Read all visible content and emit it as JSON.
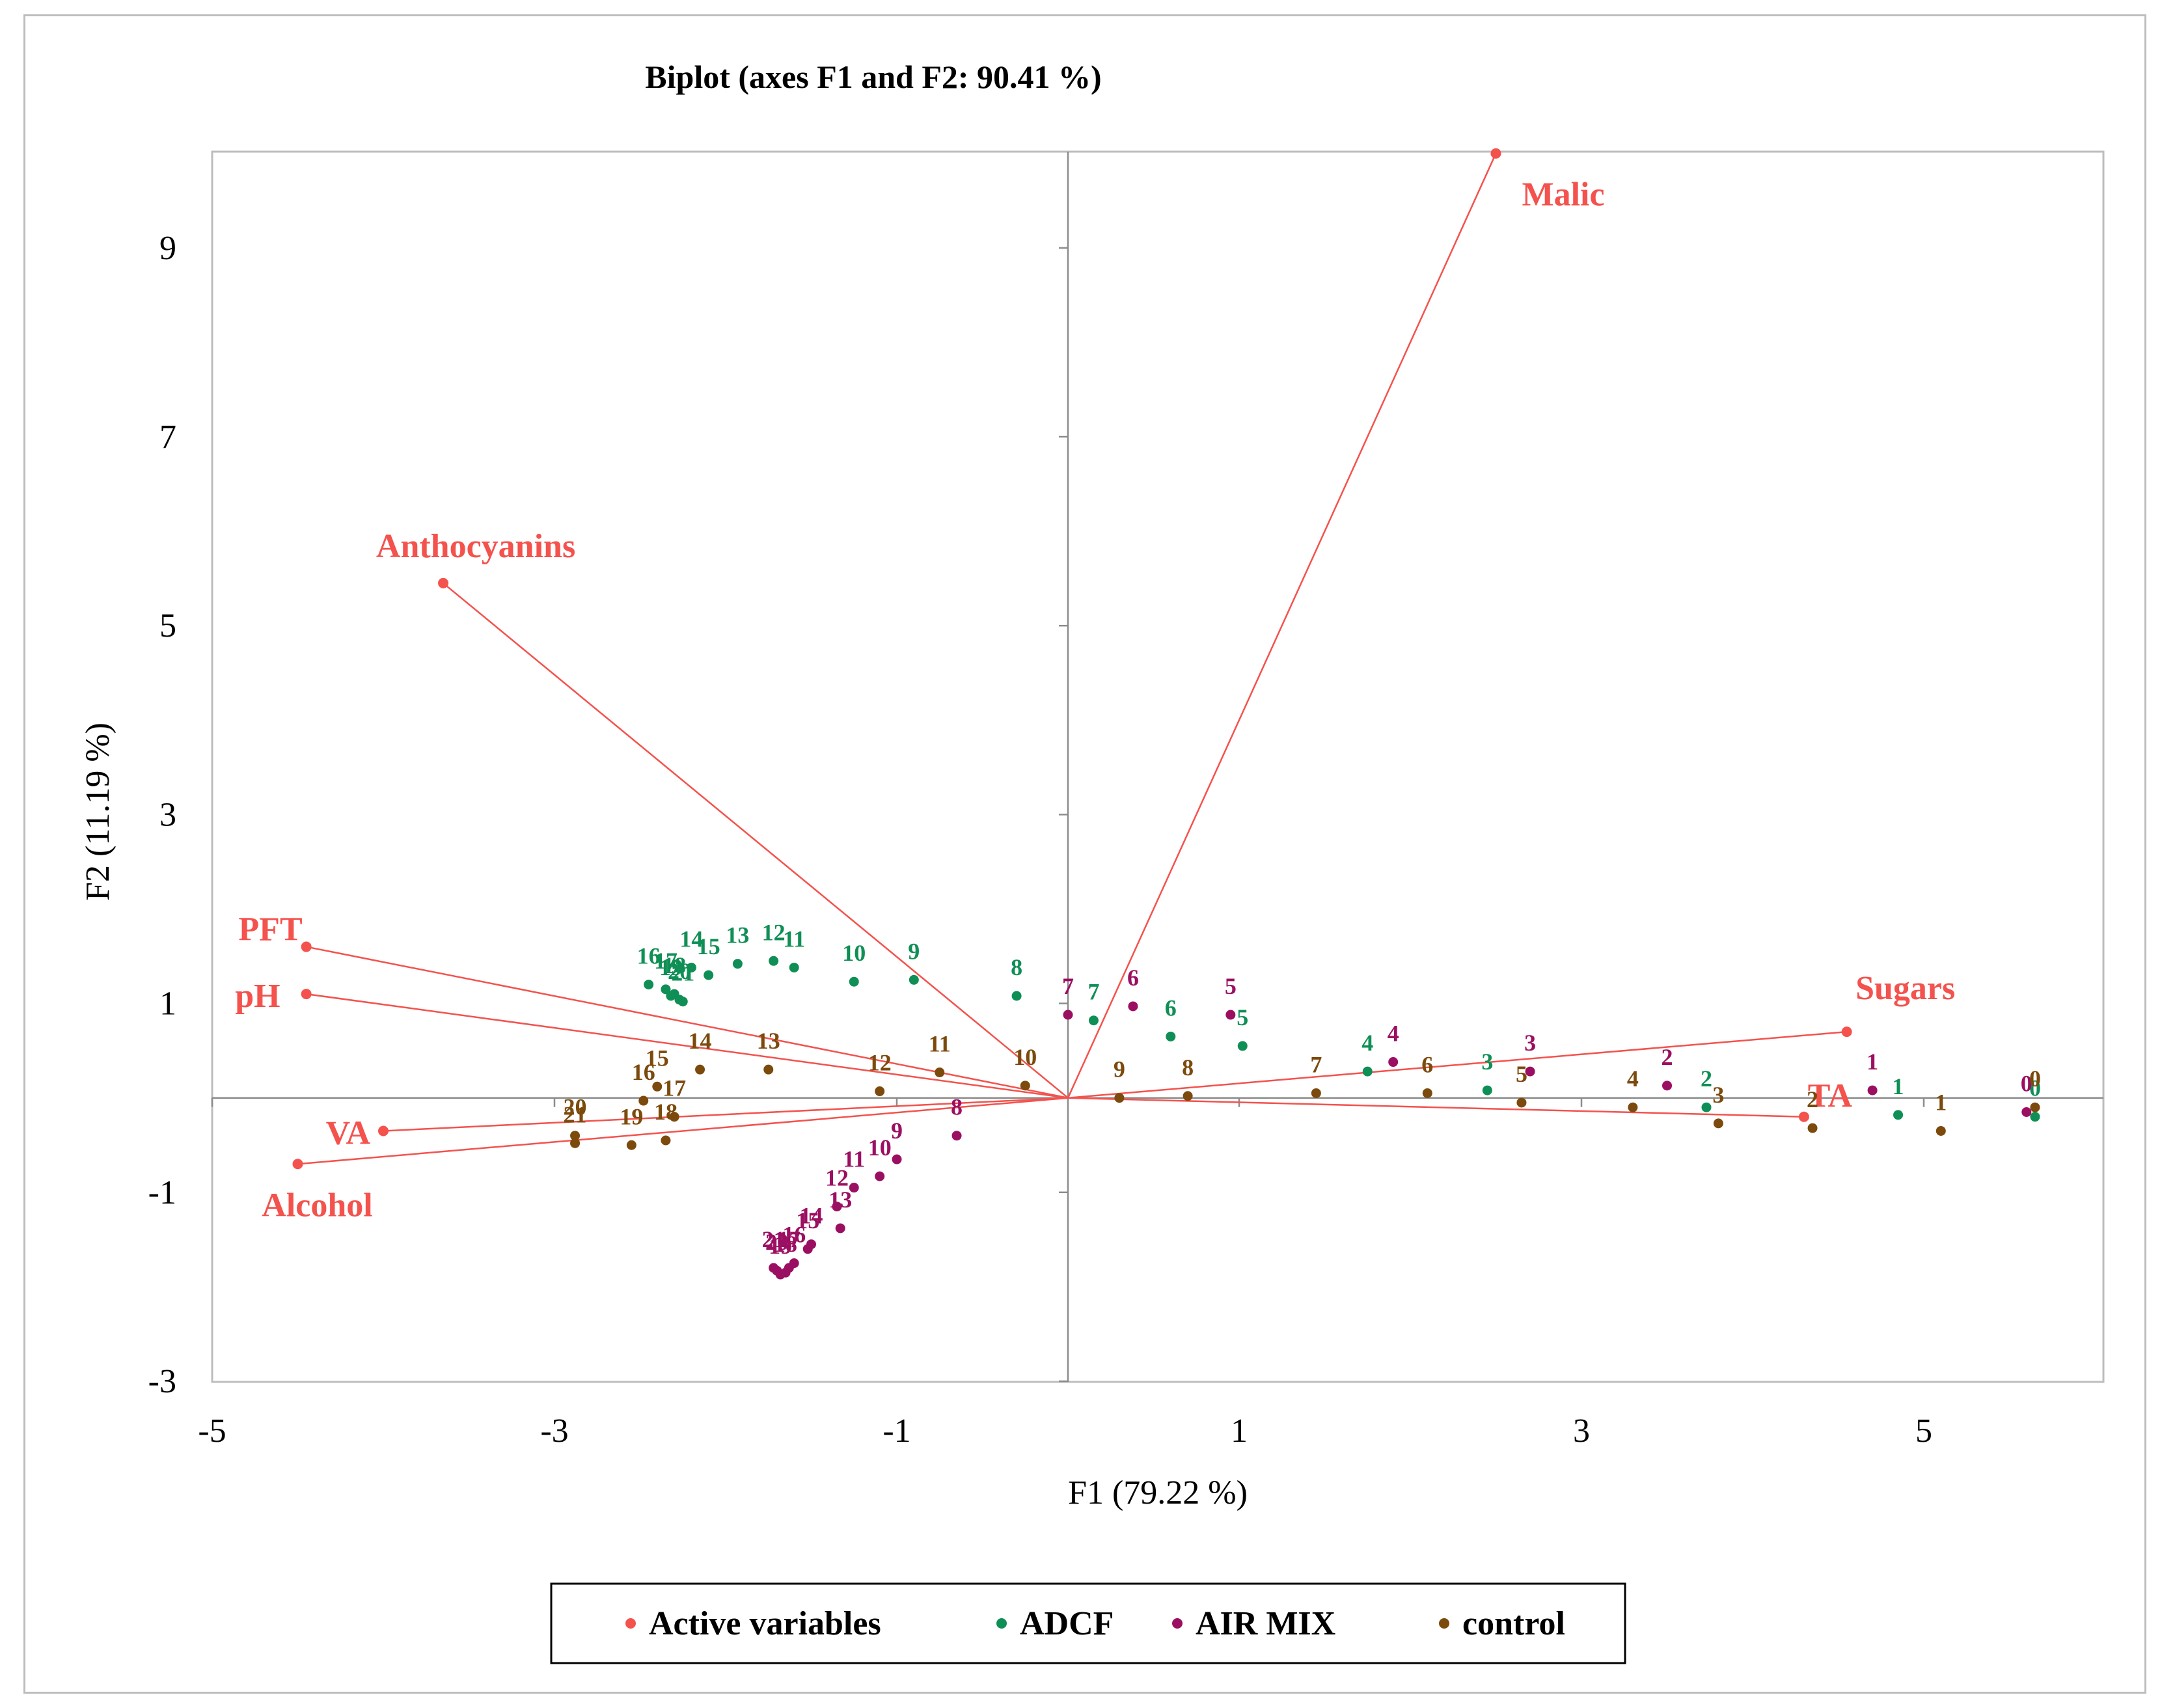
{
  "chart_data": {
    "type": "scatter",
    "subtype": "biplot",
    "title": "Biplot (axes F1 and F2: 90.41 %)",
    "xlabel": "F1 (79.22 %)",
    "ylabel": "F2 (11.19 %)",
    "xlim": [
      -5,
      6
    ],
    "ylim": [
      -3,
      10
    ],
    "xticks": [
      -5,
      -3,
      -1,
      1,
      3,
      5
    ],
    "yticks": [
      -3,
      -1,
      1,
      3,
      5,
      7,
      9
    ],
    "legend_position": "bottom-center",
    "colors": {
      "Active variables": "#f4524d",
      "ADCF": "#0f8f55",
      "AIR MIX": "#9b0f62",
      "control": "#7b4a0c",
      "axis": "#8c8c8c",
      "text": "#000000"
    },
    "vectors": [
      {
        "name": "Malic",
        "x": 2.5,
        "y": 10.0
      },
      {
        "name": "Anthocyanins",
        "x": -3.65,
        "y": 5.45
      },
      {
        "name": "PFT",
        "x": -4.45,
        "y": 1.6
      },
      {
        "name": "pH",
        "x": -4.45,
        "y": 1.1
      },
      {
        "name": "VA",
        "x": -4.0,
        "y": -0.35
      },
      {
        "name": "Alcohol",
        "x": -4.5,
        "y": -0.7
      },
      {
        "name": "Sugars",
        "x": 4.55,
        "y": 0.7
      },
      {
        "name": "TA",
        "x": 4.3,
        "y": -0.2
      }
    ],
    "series": [
      {
        "name": "ADCF",
        "points": [
          {
            "label": "0",
            "x": 5.65,
            "y": -0.2
          },
          {
            "label": "1",
            "x": 4.85,
            "y": -0.18
          },
          {
            "label": "2",
            "x": 3.73,
            "y": -0.1
          },
          {
            "label": "3",
            "x": 2.45,
            "y": 0.08
          },
          {
            "label": "4",
            "x": 1.75,
            "y": 0.28
          },
          {
            "label": "5",
            "x": 1.02,
            "y": 0.55
          },
          {
            "label": "6",
            "x": 0.6,
            "y": 0.65
          },
          {
            "label": "7",
            "x": 0.15,
            "y": 0.82
          },
          {
            "label": "8",
            "x": -0.3,
            "y": 1.08
          },
          {
            "label": "9",
            "x": -0.9,
            "y": 1.25
          },
          {
            "label": "10",
            "x": -1.25,
            "y": 1.23
          },
          {
            "label": "11",
            "x": -1.6,
            "y": 1.38
          },
          {
            "label": "12",
            "x": -1.72,
            "y": 1.45
          },
          {
            "label": "13",
            "x": -1.93,
            "y": 1.42
          },
          {
            "label": "14",
            "x": -2.2,
            "y": 1.38
          },
          {
            "label": "15",
            "x": -2.1,
            "y": 1.3
          },
          {
            "label": "16",
            "x": -2.45,
            "y": 1.2
          },
          {
            "label": "17",
            "x": -2.35,
            "y": 1.15
          },
          {
            "label": "18",
            "x": -2.3,
            "y": 1.1
          },
          {
            "label": "19",
            "x": -2.32,
            "y": 1.08
          },
          {
            "label": "20",
            "x": -2.27,
            "y": 1.04
          },
          {
            "label": "21",
            "x": -2.25,
            "y": 1.02
          }
        ]
      },
      {
        "name": "AIR MIX",
        "points": [
          {
            "label": "0",
            "x": 5.6,
            "y": -0.15
          },
          {
            "label": "1",
            "x": 4.7,
            "y": 0.08
          },
          {
            "label": "2",
            "x": 3.5,
            "y": 0.13
          },
          {
            "label": "3",
            "x": 2.7,
            "y": 0.28
          },
          {
            "label": "4",
            "x": 1.9,
            "y": 0.38
          },
          {
            "label": "5",
            "x": 0.95,
            "y": 0.88
          },
          {
            "label": "6",
            "x": 0.38,
            "y": 0.97
          },
          {
            "label": "7",
            "x": 0.0,
            "y": 0.88
          },
          {
            "label": "8",
            "x": -0.65,
            "y": -0.4
          },
          {
            "label": "9",
            "x": -1.0,
            "y": -0.65
          },
          {
            "label": "10",
            "x": -1.1,
            "y": -0.83
          },
          {
            "label": "11",
            "x": -1.25,
            "y": -0.95
          },
          {
            "label": "12",
            "x": -1.35,
            "y": -1.15
          },
          {
            "label": "13",
            "x": -1.33,
            "y": -1.38
          },
          {
            "label": "14",
            "x": -1.5,
            "y": -1.55
          },
          {
            "label": "15",
            "x": -1.52,
            "y": -1.6
          },
          {
            "label": "16",
            "x": -1.6,
            "y": -1.75
          },
          {
            "label": "17",
            "x": -1.63,
            "y": -1.8
          },
          {
            "label": "18",
            "x": -1.65,
            "y": -1.85
          },
          {
            "label": "19",
            "x": -1.68,
            "y": -1.87
          },
          {
            "label": "20",
            "x": -1.7,
            "y": -1.83
          },
          {
            "label": "21",
            "x": -1.72,
            "y": -1.8
          }
        ]
      },
      {
        "name": "control",
        "points": [
          {
            "label": "0",
            "x": 5.65,
            "y": -0.1
          },
          {
            "label": "1",
            "x": 5.1,
            "y": -0.35
          },
          {
            "label": "2",
            "x": 4.35,
            "y": -0.32
          },
          {
            "label": "3",
            "x": 3.8,
            "y": -0.27
          },
          {
            "label": "4",
            "x": 3.3,
            "y": -0.1
          },
          {
            "label": "5",
            "x": 2.65,
            "y": -0.05
          },
          {
            "label": "6",
            "x": 2.1,
            "y": 0.05
          },
          {
            "label": "7",
            "x": 1.45,
            "y": 0.05
          },
          {
            "label": "8",
            "x": 0.7,
            "y": 0.02
          },
          {
            "label": "9",
            "x": 0.3,
            "y": 0.0
          },
          {
            "label": "10",
            "x": -0.25,
            "y": 0.13
          },
          {
            "label": "11",
            "x": -0.75,
            "y": 0.27
          },
          {
            "label": "12",
            "x": -1.1,
            "y": 0.07
          },
          {
            "label": "13",
            "x": -1.75,
            "y": 0.3
          },
          {
            "label": "14",
            "x": -2.15,
            "y": 0.3
          },
          {
            "label": "15",
            "x": -2.4,
            "y": 0.12
          },
          {
            "label": "16",
            "x": -2.48,
            "y": -0.03
          },
          {
            "label": "17",
            "x": -2.3,
            "y": -0.2
          },
          {
            "label": "18",
            "x": -2.35,
            "y": -0.45
          },
          {
            "label": "19",
            "x": -2.55,
            "y": -0.5
          },
          {
            "label": "20",
            "x": -2.88,
            "y": -0.4
          },
          {
            "label": "21",
            "x": -2.88,
            "y": -0.48
          }
        ]
      }
    ],
    "legend": [
      "Active variables",
      "ADCF",
      "AIR MIX",
      "control"
    ]
  }
}
